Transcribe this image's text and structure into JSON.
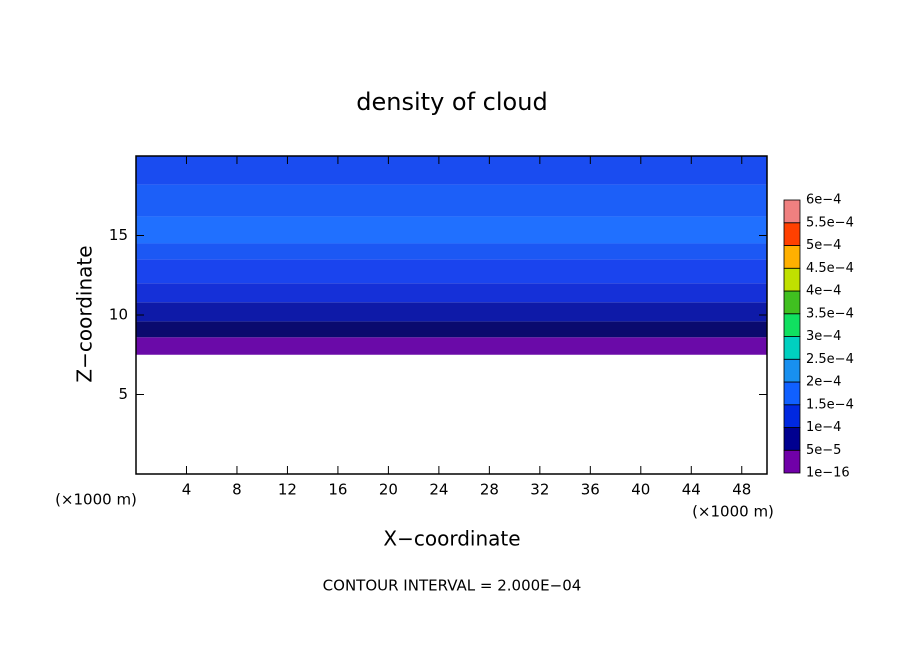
{
  "chart_data": {
    "type": "contour",
    "title": "density of cloud",
    "x_label": "X−coordinate",
    "y_label": "Z−coordinate",
    "x_unit": "(×1000 m)",
    "y_unit": "(×1000 m)",
    "footer": "CONTOUR INTERVAL = 2.000E−04",
    "xlim": [
      0,
      50
    ],
    "ylim": [
      0,
      20
    ],
    "xticks": [
      4,
      8,
      12,
      16,
      20,
      24,
      28,
      32,
      36,
      40,
      44,
      48
    ],
    "yticks": [
      5,
      10,
      15
    ],
    "layers": [
      {
        "zlim": [
          7.5,
          8.6
        ],
        "value": 2e-05,
        "color": "#6a0aa8"
      },
      {
        "zlim": [
          8.6,
          9.6
        ],
        "value": 6e-05,
        "color": "#0a0a6e"
      },
      {
        "zlim": [
          9.6,
          10.8
        ],
        "value": 7e-05,
        "color": "#0e1aa8"
      },
      {
        "zlim": [
          10.8,
          12
        ],
        "value": 8e-05,
        "color": "#1530d8"
      },
      {
        "zlim": [
          12,
          13.5
        ],
        "value": 9e-05,
        "color": "#1a44ee"
      },
      {
        "zlim": [
          13.5,
          14.5
        ],
        "value": 0.0001,
        "color": "#1c58f4"
      },
      {
        "zlim": [
          14.5,
          16.2
        ],
        "value": 0.00011,
        "color": "#2070ff"
      },
      {
        "zlim": [
          16.2,
          18.2
        ],
        "value": 0.000105,
        "color": "#1c5ff8"
      },
      {
        "zlim": [
          18.2,
          20
        ],
        "value": 9e-05,
        "color": "#1a4cf0"
      }
    ],
    "colorbar": {
      "levels": [
        {
          "value": 1e-16,
          "label": "1e−16"
        },
        {
          "value": 5e-05,
          "label": "5e−5"
        },
        {
          "value": 0.0001,
          "label": "1e−4"
        },
        {
          "value": 0.00015,
          "label": "1.5e−4"
        },
        {
          "value": 0.0002,
          "label": "2e−4"
        },
        {
          "value": 0.00025,
          "label": "2.5e−4"
        },
        {
          "value": 0.0003,
          "label": "3e−4"
        },
        {
          "value": 0.00035,
          "label": "3.5e−4"
        },
        {
          "value": 0.0004,
          "label": "4e−4"
        },
        {
          "value": 0.00045,
          "label": "4.5e−4"
        },
        {
          "value": 0.0005,
          "label": "5e−4"
        },
        {
          "value": 0.00055,
          "label": "5.5e−4"
        },
        {
          "value": 0.0006,
          "label": "6e−4"
        }
      ],
      "colors": [
        "#7000a8",
        "#000090",
        "#0028e0",
        "#1060ff",
        "#1890f0",
        "#00d0c0",
        "#10e060",
        "#40c020",
        "#c0e000",
        "#ffb000",
        "#ff4000",
        "#f08080"
      ]
    }
  }
}
